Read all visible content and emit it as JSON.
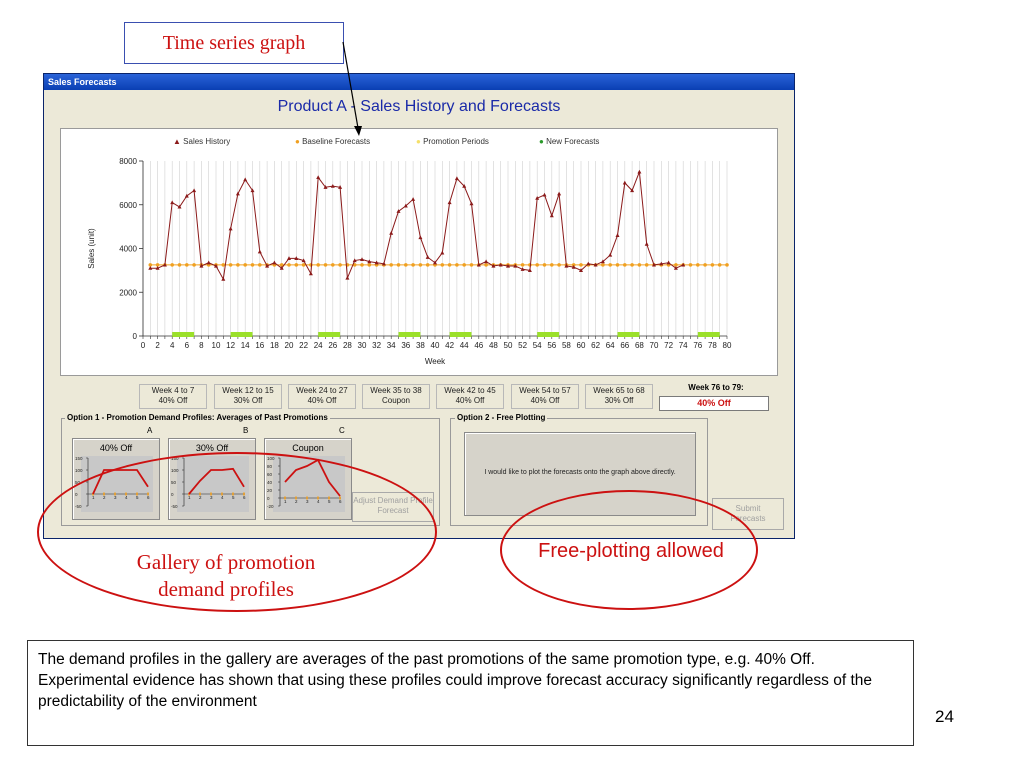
{
  "callout_title": "Time series graph",
  "window": {
    "title": "Sales Forecasts",
    "heading": "Product A - Sales History and Forecasts"
  },
  "colors": {
    "sales": "#8b1a1a",
    "baseline": "#f0a020",
    "promotion": "#9be02a",
    "forecast": "#2a9a2a",
    "accent": "#1a2aa8"
  },
  "chart_data": {
    "type": "line",
    "legend": [
      "Sales History",
      "Baseline Forecasts",
      "Promotion Periods",
      "New Forecasts"
    ],
    "xlabel": "Week",
    "ylabel": "Sales (unit)",
    "xlim": [
      0,
      80
    ],
    "ylim": [
      0,
      8000
    ],
    "xticks": [
      0,
      2,
      4,
      6,
      8,
      10,
      12,
      14,
      16,
      18,
      20,
      22,
      24,
      26,
      28,
      30,
      32,
      34,
      36,
      38,
      40,
      42,
      44,
      46,
      48,
      50,
      52,
      54,
      56,
      58,
      60,
      62,
      64,
      66,
      68,
      70,
      72,
      74,
      76,
      78,
      80
    ],
    "yticks": [
      0,
      2000,
      4000,
      6000,
      8000
    ],
    "grid": true,
    "sales_history": [
      [
        1,
        3100
      ],
      [
        2,
        3100
      ],
      [
        3,
        3250
      ],
      [
        4,
        6100
      ],
      [
        5,
        5900
      ],
      [
        6,
        6400
      ],
      [
        7,
        6650
      ],
      [
        8,
        3200
      ],
      [
        9,
        3350
      ],
      [
        10,
        3200
      ],
      [
        11,
        2600
      ],
      [
        12,
        4900
      ],
      [
        13,
        6500
      ],
      [
        14,
        7150
      ],
      [
        15,
        6650
      ],
      [
        16,
        3850
      ],
      [
        17,
        3200
      ],
      [
        18,
        3350
      ],
      [
        19,
        3100
      ],
      [
        20,
        3550
      ],
      [
        21,
        3550
      ],
      [
        22,
        3450
      ],
      [
        23,
        2850
      ],
      [
        24,
        7250
      ],
      [
        25,
        6800
      ],
      [
        26,
        6850
      ],
      [
        27,
        6800
      ],
      [
        28,
        2650
      ],
      [
        29,
        3450
      ],
      [
        30,
        3500
      ],
      [
        31,
        3400
      ],
      [
        32,
        3350
      ],
      [
        33,
        3300
      ],
      [
        34,
        4700
      ],
      [
        35,
        5700
      ],
      [
        36,
        5950
      ],
      [
        37,
        6250
      ],
      [
        38,
        4500
      ],
      [
        39,
        3600
      ],
      [
        40,
        3350
      ],
      [
        41,
        3800
      ],
      [
        42,
        6100
      ],
      [
        43,
        7200
      ],
      [
        44,
        6850
      ],
      [
        45,
        6050
      ],
      [
        46,
        3250
      ],
      [
        47,
        3400
      ],
      [
        48,
        3200
      ],
      [
        49,
        3250
      ],
      [
        50,
        3200
      ],
      [
        51,
        3200
      ],
      [
        52,
        3050
      ],
      [
        53,
        3000
      ],
      [
        54,
        6300
      ],
      [
        55,
        6450
      ],
      [
        56,
        5500
      ],
      [
        57,
        6500
      ],
      [
        58,
        3200
      ],
      [
        59,
        3150
      ],
      [
        60,
        3000
      ],
      [
        61,
        3300
      ],
      [
        62,
        3250
      ],
      [
        63,
        3400
      ],
      [
        64,
        3700
      ],
      [
        65,
        4600
      ],
      [
        66,
        7000
      ],
      [
        67,
        6650
      ],
      [
        68,
        7500
      ],
      [
        69,
        4200
      ],
      [
        70,
        3250
      ],
      [
        71,
        3300
      ],
      [
        72,
        3350
      ],
      [
        73,
        3100
      ],
      [
        74,
        3250
      ]
    ],
    "baseline_level": 3250,
    "baseline_range": [
      1,
      80
    ],
    "promotion_periods": [
      [
        4,
        7
      ],
      [
        12,
        15
      ],
      [
        24,
        27
      ],
      [
        35,
        38
      ],
      [
        42,
        45
      ],
      [
        54,
        57
      ],
      [
        65,
        68
      ],
      [
        76,
        79
      ]
    ]
  },
  "promotions": [
    {
      "weeks": "Week 4 to 7",
      "type": "40% Off"
    },
    {
      "weeks": "Week 12 to 15",
      "type": "30% Off"
    },
    {
      "weeks": "Week 24 to 27",
      "type": "40% Off"
    },
    {
      "weeks": "Week 35 to 38",
      "type": "Coupon"
    },
    {
      "weeks": "Week 42 to 45",
      "type": "40% Off"
    },
    {
      "weeks": "Week 54 to 57",
      "type": "40% Off"
    },
    {
      "weeks": "Week 65 to 68",
      "type": "30% Off"
    }
  ],
  "next_promotion": {
    "weeks": "Week 76 to 79:",
    "type": "40% Off"
  },
  "option1": {
    "title": "Option 1 - Promotion Demand Profiles: Averages of Past Promotions",
    "profiles": [
      {
        "letter": "A",
        "label": "40% Off",
        "yticks": [
          "150",
          "100",
          "50",
          "0",
          "-50"
        ],
        "values": [
          0,
          100,
          100,
          100,
          100,
          30
        ]
      },
      {
        "letter": "B",
        "label": "30% Off",
        "yticks": [
          "150",
          "100",
          "50",
          "0",
          "-50"
        ],
        "values": [
          0,
          55,
          100,
          100,
          105,
          30
        ]
      },
      {
        "letter": "C",
        "label": "Coupon",
        "yticks": [
          "100",
          "80",
          "60",
          "40",
          "20",
          "0",
          "-20"
        ],
        "values": [
          40,
          70,
          80,
          95,
          40,
          5
        ]
      }
    ],
    "xticks": [
      "1",
      "2",
      "3",
      "4",
      "5",
      "6"
    ],
    "adjust_button": "Adjust Demand Profile Forecast"
  },
  "option2": {
    "title": "Option 2 - Free Plotting",
    "button_text": "I would like to plot the forecasts onto the graph above directly."
  },
  "submit_button": "Submit Forecasts",
  "annotations": {
    "gallery": "Gallery of promotion demand profiles",
    "free_plotting": "Free-plotting allowed"
  },
  "note_lines": [
    "The demand profiles in the gallery are averages of the past promotions of the same promotion type, e.g. 40% Off.",
    "Experimental evidence has shown that using these profiles could improve forecast accuracy significantly regardless of the predictability of the environment"
  ],
  "page_number": "24"
}
